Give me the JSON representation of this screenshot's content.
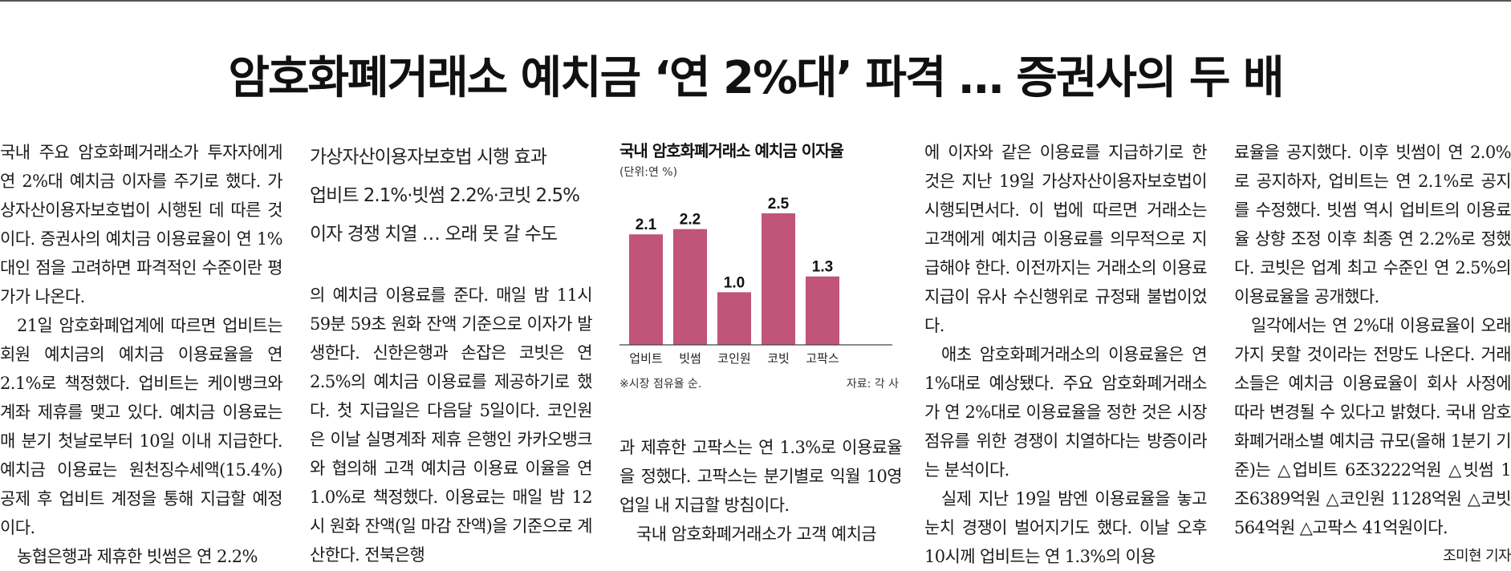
{
  "headline": "암호화폐거래소 예치금 ‘연 2%대’ 파격 … 증권사의 두 배",
  "subhead": [
    "가상자산이용자보호법 시행 효과",
    "업비트 2.1%·빗썸 2.2%·코빗 2.5%",
    "이자 경쟁 치열 … 오래 못 갈 수도"
  ],
  "col1": [
    "국내 주요 암호화폐거래소가 투자자에게 연 2%대 예치금 이자를 주기로 했다. 가상자산이용자보호법이 시행된 데 따른 것이다. 증권사의 예치금 이용료율이 연 1%대인 점을 고려하면 파격적인 수준이란 평가가 나온다.",
    "21일 암호화폐업계에 따르면 업비트는 회원 예치금의 예치금 이용료율을 연 2.1%로 책정했다. 업비트는 케이뱅크와 계좌 제휴를 맺고 있다. 예치금 이용료는 매 분기 첫날로부터 10일 이내 지급한다. 예치금 이용료는 원천징수세액(15.4%) 공제 후 업비트 계정을 통해 지급할 예정이다.",
    "농협은행과 제휴한 빗썸은 연 2.2%"
  ],
  "col2": "의 예치금 이용료를 준다. 매일 밤 11시 59분 59초 원화 잔액 기준으로 이자가 발생한다. 신한은행과 손잡은 코빗은 연 2.5%의 예치금 이용료를 제공하기로 했다. 첫 지급일은 다음달 5일이다. 코인원은 이날 실명계좌 제휴 은행인 카카오뱅크와 협의해 고객 예치금 이용료 이율을 연 1.0%로 책정했다. 이용료는 매일 밤 12시 원화 잔액(일 마감 잔액)을 기준으로 계산한다. 전북은행",
  "col3": [
    "과 제휴한 고팍스는 연 1.3%로 이용료율을 정했다. 고팍스는 분기별로 익월 10영업일 내 지급할 방침이다.",
    "국내 암호화폐거래소가 고객 예치금"
  ],
  "col4": [
    "에 이자와 같은 이용료를 지급하기로 한 것은 지난 19일 가상자산이용자보호법이 시행되면서다. 이 법에 따르면 거래소는 고객에게 예치금 이용료를 의무적으로 지급해야 한다. 이전까지는 거래소의 이용료 지급이 유사 수신행위로 규정돼 불법이었다.",
    "애초 암호화폐거래소의 이용료율은 연 1%대로 예상됐다. 주요 암호화폐거래소가 연 2%대로 이용료율을 정한 것은 시장 점유를 위한 경쟁이 치열하다는 방증이라는 분석이다.",
    "실제 지난 19일 밤엔 이용료율을 놓고 눈치 경쟁이 벌어지기도 했다. 이날 오후 10시께 업비트는 연 1.3%의 이용"
  ],
  "col5": [
    "료율을 공지했다. 이후 빗썸이 연 2.0%로 공지하자, 업비트는 연 2.1%로 공지를 수정했다. 빗썸 역시 업비트의 이용료율 상향 조정 이후 최종 연 2.2%로 정했다. 코빗은 업계 최고 수준인 연 2.5%의 이용료율을 공개했다.",
    "일각에서는 연 2%대 이용료율이 오래가지 못할 것이라는 전망도 나온다. 거래소들은 예치금 이용료율이 회사 사정에 따라 변경될 수 있다고 밝혔다. 국내 암호화폐거래소별 예치금 규모(올해 1분기 기준)는 △업비트 6조3222억원 △빗썸 1조6389억원 △코인원 1128억원 △코빗 564억원 △고팍스 41억원이다."
  ],
  "byline": "조미현 기자",
  "chart_data": {
    "type": "bar",
    "title": "국내 암호화폐거래소 예치금 이자율",
    "unit": "(단위:연 %)",
    "categories": [
      "업비트",
      "빗썸",
      "코인원",
      "코빗",
      "고팍스"
    ],
    "values": [
      2.1,
      2.2,
      1.0,
      2.5,
      1.3
    ],
    "value_labels": [
      "2.1",
      "2.2",
      "1.0",
      "2.5",
      "1.3"
    ],
    "note": "※시장 점유율 순.",
    "source": "자료: 각 사",
    "bar_color": "#c05479",
    "ylim": [
      0,
      2.5
    ]
  }
}
